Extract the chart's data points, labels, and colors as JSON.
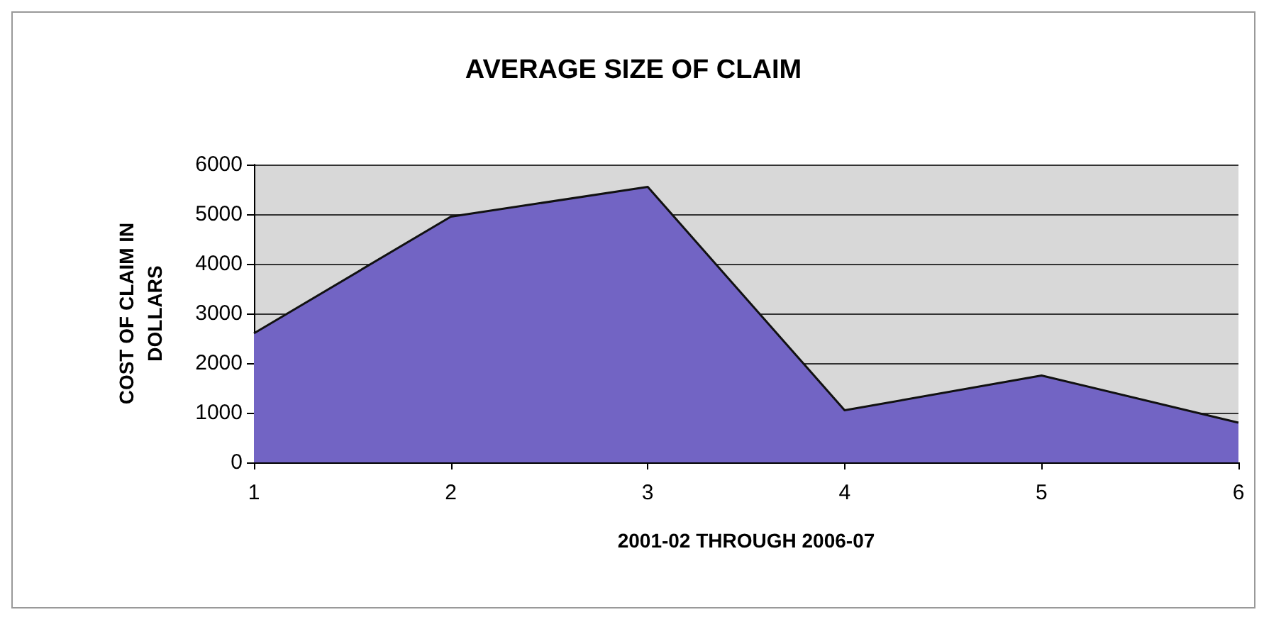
{
  "chart_data": {
    "type": "area",
    "title": "AVERAGE SIZE OF CLAIM",
    "xlabel": "2001-02 THROUGH 2006-07",
    "ylabel": "COST OF CLAIM IN\nDOLLARS",
    "categories": [
      "1",
      "2",
      "3",
      "4",
      "5",
      "6"
    ],
    "series": [
      {
        "color": "#7264c4",
        "values": [
          2600,
          4950,
          5550,
          1050,
          1750,
          800
        ]
      }
    ],
    "ylim": [
      0,
      6000
    ],
    "yticks": [
      0,
      1000,
      2000,
      3000,
      4000,
      5000,
      6000
    ],
    "grid": "y"
  }
}
